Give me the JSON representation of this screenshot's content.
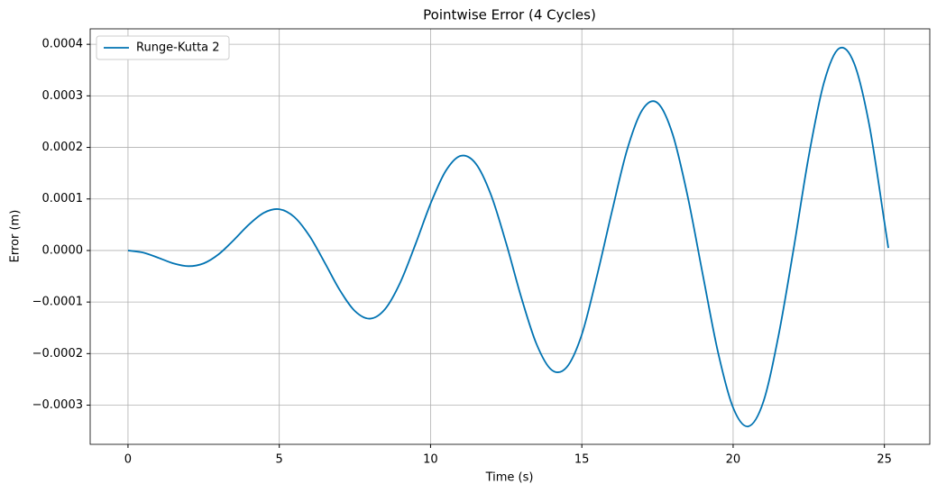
{
  "chart_data": {
    "type": "line",
    "title": "Pointwise Error (4 Cycles)",
    "xlabel": "Time (s)",
    "ylabel": "Error (m)",
    "x": [
      0,
      0.5,
      1,
      1.5,
      2,
      2.5,
      3,
      3.5,
      4,
      4.5,
      5,
      5.5,
      6,
      6.5,
      7,
      7.5,
      8,
      8.5,
      9,
      9.5,
      10,
      10.5,
      11,
      11.5,
      12,
      12.5,
      13,
      13.5,
      14,
      14.5,
      15,
      15.5,
      16,
      16.5,
      17,
      17.5,
      18,
      18.5,
      19,
      19.5,
      20,
      20.5,
      21,
      21.5,
      22,
      22.5,
      23,
      23.5,
      24,
      24.5,
      25,
      25.13
    ],
    "series": [
      {
        "name": "Runge-Kutta 2",
        "color": "#0173b2",
        "values": [
          0,
          -4e-06,
          -1.405e-05,
          -2.499e-05,
          -3.037e-05,
          -2.499e-05,
          -7.07e-06,
          2.05e-05,
          5.055e-05,
          7.346e-05,
          8.007e-05,
          6.48e-05,
          2.8e-05,
          -2.335e-05,
          -7.68e-05,
          -0.00011748,
          -0.00013218,
          -0.00011335,
          -6.194e-05,
          1.193e-05,
          9.085e-05,
          0.00015425,
          0.0001837,
          0.00016814,
          0.00010753,
          1.384e-05,
          -9.122e-05,
          -0.00018121,
          -0.0002316,
          -0.00022639,
          -0.0001629,
          -4.934e-05,
          7.693e-05,
          0.00019619,
          0.00027294,
          0.00028641,
          0.00022575,
          0.00010452,
          -4.756e-05,
          -0.00019718,
          -0.00030491,
          -0.00034125,
          -0.00029343,
          -0.00016513,
          3.27e-06,
          0.00018318,
          0.00032503,
          0.0003919,
          0.00036296,
          0.0002434,
          5.528e-05,
          5e-06
        ]
      }
    ],
    "xlim": [
      -1.25,
      26.5
    ],
    "ylim": [
      -0.000376,
      0.00043
    ],
    "xticks": [
      0,
      5,
      10,
      15,
      20,
      25
    ],
    "yticks": [
      {
        "value": -0.0003,
        "label": "−0.0003"
      },
      {
        "value": -0.0002,
        "label": "−0.0002"
      },
      {
        "value": -0.0001,
        "label": "−0.0001"
      },
      {
        "value": 0,
        "label": "0.0000"
      },
      0.0001,
      0.0002,
      0.0003,
      0.0004
    ],
    "grid": true,
    "legend": "upper left"
  }
}
